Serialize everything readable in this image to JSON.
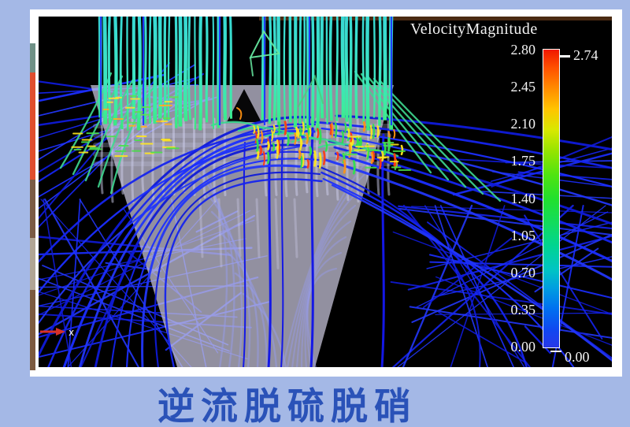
{
  "legend": {
    "title": "VelocityMagnitude",
    "ticks": [
      "2.80",
      "2.45",
      "2.10",
      "1.75",
      "1.40",
      "1.05",
      "0.70",
      "0.35",
      "0.00"
    ],
    "max_annotation": "2.74",
    "min_annotation": "0.00"
  },
  "axis_indicator": {
    "label": "x"
  },
  "caption": "逆流脱硫脱硝",
  "colors": {
    "background": "#a4b8e6",
    "caption_text": "#2a52b8",
    "plot_background": "#000000",
    "legend_text": "#f2f2f2",
    "colorbar_top": "#f01800",
    "colorbar_bottom": "#2838e8",
    "streamline_blue": "#1c2cf4",
    "streamline_teal": "#3ae0c2",
    "funnel_gray": "rgba(202,199,222,0.72)",
    "axis_arrow_red": "#d83028"
  }
}
